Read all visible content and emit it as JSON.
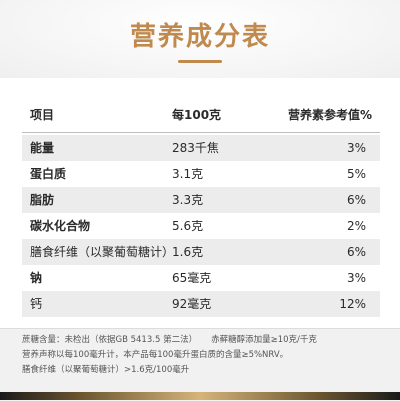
{
  "title": "营养成分表",
  "table": {
    "headers": {
      "item": "项目",
      "per100": "每100克",
      "nrv": "营养素参考值%"
    },
    "rows": [
      {
        "name": "能量",
        "amount": "283千焦",
        "nrv": "3%",
        "bold": true
      },
      {
        "name": "蛋白质",
        "amount": "3.1克",
        "nrv": "5%",
        "bold": true
      },
      {
        "name": "脂肪",
        "amount": "3.3克",
        "nrv": "6%",
        "bold": true
      },
      {
        "name": "碳水化合物",
        "amount": "5.6克",
        "nrv": "2%",
        "bold": true
      },
      {
        "name": "膳食纤维（以聚葡萄糖计）",
        "amount": "1.6克",
        "nrv": "6%",
        "bold": false
      },
      {
        "name": "钠",
        "amount": "65毫克",
        "nrv": "3%",
        "bold": true
      },
      {
        "name": "钙",
        "amount": "92毫克",
        "nrv": "12%",
        "bold": false
      }
    ]
  },
  "footnote": {
    "line1_a": "蔗糖含量：未检出（依据GB 5413.5 第二法）",
    "line1_b": "赤藓糖醇添加量≥10克/千克",
    "line2": "营养声称以每100毫升计，本产品每100毫升蛋白质的含量≥5%NRV。",
    "line3": "膳食纤维（以聚葡萄糖计）>1.6克/100毫升"
  },
  "colors": {
    "title": "#c08a4e",
    "shade": "#ececec"
  }
}
